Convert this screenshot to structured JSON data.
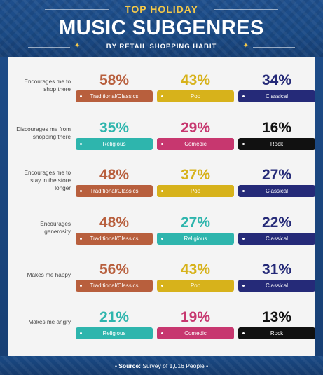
{
  "header": {
    "kicker": "TOP HOLIDAY",
    "title": "MUSIC SUBGENRES",
    "subtitle": "BY RETAIL SHOPPING HABIT",
    "star_glyph": "✦"
  },
  "footer": {
    "source_label": "Source:",
    "source_text": "Survey of 1,016 People"
  },
  "colors": {
    "Traditional/Classics": "#b85f3d",
    "Pop": "#d7b21b",
    "Classical": "#252a78",
    "Religious": "#2eb5ad",
    "Comedic": "#c7376f",
    "Rock": "#111111"
  },
  "chart_data": {
    "type": "table",
    "unit": "%",
    "rows": [
      {
        "habit": "Encourages me to shop there",
        "entries": [
          {
            "genre": "Traditional/Classics",
            "value": 58,
            "label": "58%"
          },
          {
            "genre": "Pop",
            "value": 43,
            "label": "43%"
          },
          {
            "genre": "Classical",
            "value": 34,
            "label": "34%"
          }
        ]
      },
      {
        "habit": "Discourages me from shopping there",
        "entries": [
          {
            "genre": "Religious",
            "value": 35,
            "label": "35%"
          },
          {
            "genre": "Comedic",
            "value": 29,
            "label": "29%"
          },
          {
            "genre": "Rock",
            "value": 16,
            "label": "16%"
          }
        ]
      },
      {
        "habit": "Encourages me to stay in the store longer",
        "entries": [
          {
            "genre": "Traditional/Classics",
            "value": 48,
            "label": "48%"
          },
          {
            "genre": "Pop",
            "value": 37,
            "label": "37%"
          },
          {
            "genre": "Classical",
            "value": 27,
            "label": "27%"
          }
        ]
      },
      {
        "habit": "Encourages generosity",
        "entries": [
          {
            "genre": "Traditional/Classics",
            "value": 48,
            "label": "48%"
          },
          {
            "genre": "Religious",
            "value": 27,
            "label": "27%"
          },
          {
            "genre": "Classical",
            "value": 22,
            "label": "22%"
          }
        ]
      },
      {
        "habit": "Makes me happy",
        "entries": [
          {
            "genre": "Traditional/Classics",
            "value": 56,
            "label": "56%"
          },
          {
            "genre": "Pop",
            "value": 43,
            "label": "43%"
          },
          {
            "genre": "Classical",
            "value": 31,
            "label": "31%"
          }
        ]
      },
      {
        "habit": "Makes me angry",
        "entries": [
          {
            "genre": "Religious",
            "value": 21,
            "label": "21%"
          },
          {
            "genre": "Comedic",
            "value": 19,
            "label": "19%"
          },
          {
            "genre": "Rock",
            "value": 13,
            "label": "13%"
          }
        ]
      }
    ]
  }
}
